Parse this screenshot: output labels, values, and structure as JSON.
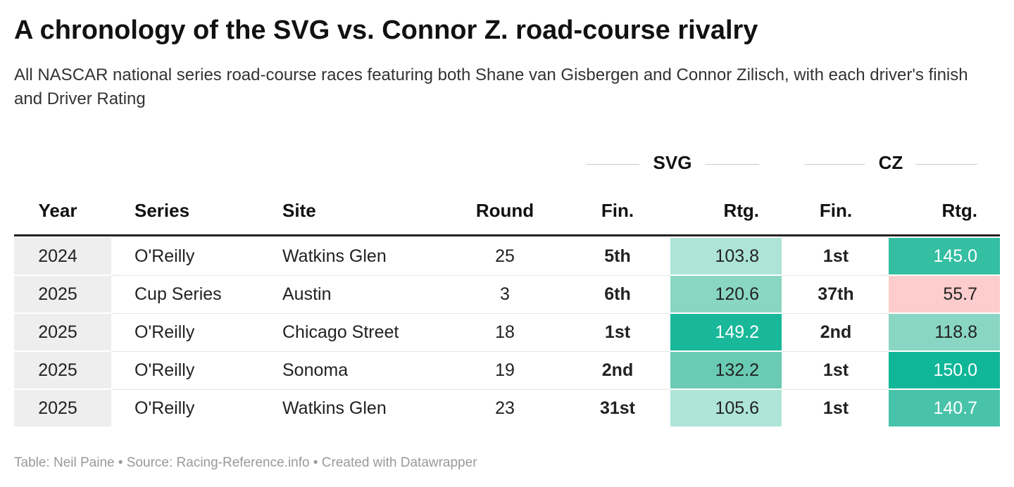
{
  "header": {
    "title": "A chronology of the SVG vs. Connor Z. road-course rivalry",
    "subtitle": "All NASCAR national series road-course races featuring both Shane van Gisbergen and Connor Zilisch, with each driver's finish and Driver Rating"
  },
  "table": {
    "groups": [
      "SVG",
      "CZ"
    ],
    "columns": [
      "Year",
      "Series",
      "Site",
      "Round",
      "Fin.",
      "Rtg.",
      "Fin.",
      "Rtg."
    ],
    "rows": [
      [
        "2024",
        "O'Reilly",
        "Watkins Glen",
        "25",
        "5th",
        "103.8",
        "1st",
        "145.0"
      ],
      [
        "2025",
        "Cup Series",
        "Austin",
        "3",
        "6th",
        "120.6",
        "37th",
        "55.7"
      ],
      [
        "2025",
        "O'Reilly",
        "Chicago Street",
        "18",
        "1st",
        "149.2",
        "2nd",
        "118.8"
      ],
      [
        "2025",
        "O'Reilly",
        "Sonoma",
        "19",
        "2nd",
        "132.2",
        "1st",
        "150.0"
      ],
      [
        "2025",
        "O'Reilly",
        "Watkins Glen",
        "23",
        "31st",
        "105.6",
        "1st",
        "140.7"
      ]
    ],
    "rating_colors": [
      [
        "#ade4d7",
        "#34bea2"
      ],
      [
        "#89d6c3",
        "#fdcccc"
      ],
      [
        "#19b89a",
        "#8ad6c4"
      ],
      [
        "#69cbb3",
        "#0fb698"
      ],
      [
        "#aee5d8",
        "#48c3a9"
      ]
    ]
  },
  "footer": "Table: Neil Paine • Source: Racing-Reference.info • Created with Datawrapper"
}
